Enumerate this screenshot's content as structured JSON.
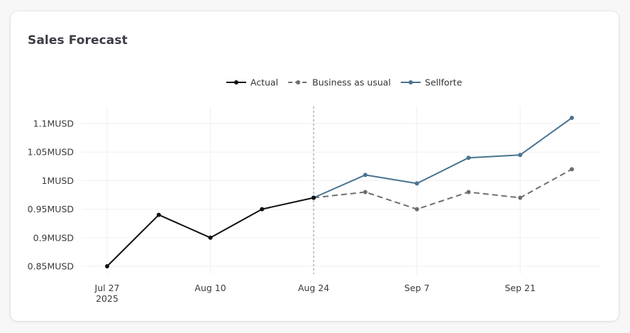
{
  "card": {
    "title": "Sales Forecast"
  },
  "chart_data": {
    "type": "line",
    "title": "Sales Forecast",
    "xlabel": "",
    "ylabel": "",
    "x_axis": {
      "type": "date",
      "range": [
        "2025-07-27",
        "2025-09-28"
      ],
      "ticks": [
        {
          "date": "2025-07-27",
          "label": "Jul 27",
          "sublabel": "2025"
        },
        {
          "date": "2025-08-10",
          "label": "Aug 10",
          "sublabel": ""
        },
        {
          "date": "2025-08-24",
          "label": "Aug 24",
          "sublabel": ""
        },
        {
          "date": "2025-09-07",
          "label": "Sep 7",
          "sublabel": ""
        },
        {
          "date": "2025-09-21",
          "label": "Sep 21",
          "sublabel": ""
        }
      ]
    },
    "y_axis": {
      "range": [
        0.84,
        1.12
      ],
      "ticks": [
        {
          "value": 0.85,
          "label": "0.85MUSD"
        },
        {
          "value": 0.9,
          "label": "0.9MUSD"
        },
        {
          "value": 0.95,
          "label": "0.95MUSD"
        },
        {
          "value": 1.0,
          "label": "1MUSD"
        },
        {
          "value": 1.05,
          "label": "1.05MUSD"
        },
        {
          "value": 1.1,
          "label": "1.1MUSD"
        }
      ]
    },
    "grid": true,
    "legend_position": "top-center",
    "reference_line": {
      "x": "2025-08-24",
      "style": "dotted"
    },
    "series": [
      {
        "name": "Actual",
        "color": "#111111",
        "dash": false,
        "points": [
          {
            "x": "2025-07-27",
            "y": 0.85
          },
          {
            "x": "2025-08-03",
            "y": 0.94
          },
          {
            "x": "2025-08-10",
            "y": 0.9
          },
          {
            "x": "2025-08-17",
            "y": 0.95
          },
          {
            "x": "2025-08-24",
            "y": 0.97
          }
        ]
      },
      {
        "name": "Business as usual",
        "color": "#6e6e6e",
        "dash": true,
        "points": [
          {
            "x": "2025-08-24",
            "y": 0.97
          },
          {
            "x": "2025-08-31",
            "y": 0.98
          },
          {
            "x": "2025-09-07",
            "y": 0.95
          },
          {
            "x": "2025-09-14",
            "y": 0.98
          },
          {
            "x": "2025-09-21",
            "y": 0.97
          },
          {
            "x": "2025-09-28",
            "y": 1.02
          }
        ]
      },
      {
        "name": "Sellforte",
        "color": "#4a7391",
        "dash": false,
        "points": [
          {
            "x": "2025-08-24",
            "y": 0.97
          },
          {
            "x": "2025-08-31",
            "y": 1.01
          },
          {
            "x": "2025-09-07",
            "y": 0.995
          },
          {
            "x": "2025-09-14",
            "y": 1.04
          },
          {
            "x": "2025-09-21",
            "y": 1.045
          },
          {
            "x": "2025-09-28",
            "y": 1.11
          }
        ]
      }
    ]
  }
}
